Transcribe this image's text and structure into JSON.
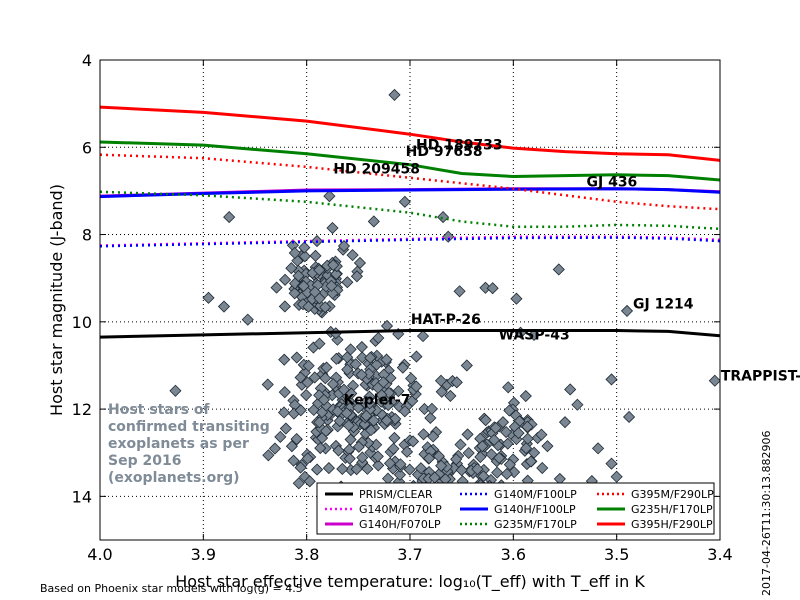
{
  "chart_data": {
    "type": "scatter",
    "xlabel": "Host star effective temperature: log₁₀(T_eff) with T_eff in K",
    "ylabel": "Host star magnitude (J-band)",
    "xlim": [
      4.0,
      3.4
    ],
    "ylim": [
      15,
      4
    ],
    "x_ticks": [
      "4.0",
      "3.9",
      "3.8",
      "3.7",
      "3.6",
      "3.5",
      "3.4"
    ],
    "y_ticks": [
      "4",
      "6",
      "8",
      "10",
      "12",
      "14"
    ],
    "grid": true,
    "legend_position": "bottom-right",
    "annotation": "Host stars of\nconfirmed transiting\nexoplanets as per\nSep 2016\n(exoplanets.org)",
    "footnote": "Based on Phoenix star models with log(g) = 4.5",
    "timestamp": "2017-04-26T11:30:13.882906",
    "named_stars": [
      {
        "name": "HD 189733",
        "x": 3.7,
        "y": 6.05
      },
      {
        "name": "HD 97658",
        "x": 3.71,
        "y": 6.2
      },
      {
        "name": "HD 209458",
        "x": 3.78,
        "y": 6.6
      },
      {
        "name": "GJ 436",
        "x": 3.535,
        "y": 6.9
      },
      {
        "name": "HAT-P-26",
        "x": 3.705,
        "y": 10.05
      },
      {
        "name": "WASP-43",
        "x": 3.62,
        "y": 10.4
      },
      {
        "name": "GJ 1214",
        "x": 3.49,
        "y": 9.7
      },
      {
        "name": "TRAPPIST-1",
        "x": 3.405,
        "y": 11.35
      },
      {
        "name": "Kepler-7",
        "x": 3.77,
        "y": 11.9
      }
    ],
    "series": [
      {
        "name": "PRISM/CLEAR",
        "color": "#000000",
        "dash": "solid",
        "points": [
          [
            4.0,
            10.35
          ],
          [
            3.9,
            10.3
          ],
          [
            3.8,
            10.25
          ],
          [
            3.7,
            10.2
          ],
          [
            3.6,
            10.2
          ],
          [
            3.5,
            10.2
          ],
          [
            3.45,
            10.22
          ],
          [
            3.4,
            10.32
          ]
        ]
      },
      {
        "name": "G140M/F070LP",
        "color": "#ff00ff",
        "dash": "dotted",
        "points": [
          [
            4.0,
            8.25
          ],
          [
            3.9,
            8.2
          ],
          [
            3.8,
            8.15
          ],
          [
            3.7,
            8.1
          ],
          [
            3.6,
            8.05
          ],
          [
            3.5,
            8.05
          ],
          [
            3.45,
            8.07
          ],
          [
            3.4,
            8.12
          ]
        ]
      },
      {
        "name": "G140H/F070LP",
        "color": "#cc00cc",
        "dash": "solid",
        "points": [
          [
            4.0,
            7.12
          ],
          [
            3.9,
            7.05
          ],
          [
            3.8,
            6.98
          ],
          [
            3.7,
            6.97
          ],
          [
            3.6,
            6.95
          ],
          [
            3.5,
            6.95
          ],
          [
            3.45,
            6.97
          ],
          [
            3.4,
            7.02
          ]
        ]
      },
      {
        "name": "G140M/F100LP",
        "color": "#0000ff",
        "dash": "dotted",
        "points": [
          [
            4.0,
            8.27
          ],
          [
            3.9,
            8.22
          ],
          [
            3.8,
            8.17
          ],
          [
            3.7,
            8.12
          ],
          [
            3.6,
            8.08
          ],
          [
            3.5,
            8.07
          ],
          [
            3.45,
            8.09
          ],
          [
            3.4,
            8.15
          ]
        ]
      },
      {
        "name": "G140H/F100LP",
        "color": "#0000ff",
        "dash": "solid",
        "points": [
          [
            4.0,
            7.13
          ],
          [
            3.9,
            7.06
          ],
          [
            3.8,
            7.0
          ],
          [
            3.7,
            6.98
          ],
          [
            3.6,
            6.96
          ],
          [
            3.5,
            6.95
          ],
          [
            3.45,
            6.97
          ],
          [
            3.4,
            7.03
          ]
        ]
      },
      {
        "name": "G235M/F170LP",
        "color": "#008000",
        "dash": "dotted",
        "points": [
          [
            4.0,
            7.02
          ],
          [
            3.9,
            7.1
          ],
          [
            3.8,
            7.25
          ],
          [
            3.7,
            7.5
          ],
          [
            3.65,
            7.7
          ],
          [
            3.6,
            7.82
          ],
          [
            3.55,
            7.82
          ],
          [
            3.5,
            7.78
          ],
          [
            3.45,
            7.8
          ],
          [
            3.4,
            7.87
          ]
        ]
      },
      {
        "name": "G395M/F290LP",
        "color": "#ff0000",
        "dash": "dotted",
        "points": [
          [
            4.0,
            6.17
          ],
          [
            3.9,
            6.25
          ],
          [
            3.8,
            6.45
          ],
          [
            3.7,
            6.7
          ],
          [
            3.6,
            6.95
          ],
          [
            3.55,
            7.1
          ],
          [
            3.5,
            7.25
          ],
          [
            3.45,
            7.35
          ],
          [
            3.4,
            7.42
          ]
        ]
      },
      {
        "name": "G235H/F170LP",
        "color": "#008000",
        "dash": "solid",
        "points": [
          [
            4.0,
            5.88
          ],
          [
            3.9,
            5.95
          ],
          [
            3.8,
            6.15
          ],
          [
            3.7,
            6.4
          ],
          [
            3.65,
            6.6
          ],
          [
            3.6,
            6.67
          ],
          [
            3.55,
            6.65
          ],
          [
            3.5,
            6.63
          ],
          [
            3.45,
            6.65
          ],
          [
            3.4,
            6.75
          ]
        ]
      },
      {
        "name": "G395H/F290LP",
        "color": "#ff0000",
        "dash": "solid",
        "points": [
          [
            4.0,
            5.08
          ],
          [
            3.9,
            5.2
          ],
          [
            3.8,
            5.4
          ],
          [
            3.7,
            5.7
          ],
          [
            3.65,
            5.88
          ],
          [
            3.6,
            6.02
          ],
          [
            3.55,
            6.1
          ],
          [
            3.5,
            6.15
          ],
          [
            3.45,
            6.17
          ],
          [
            3.4,
            6.3
          ]
        ]
      }
    ],
    "star_points": [
      [
        3.715,
        4.8
      ],
      [
        3.927,
        11.58
      ],
      [
        3.875,
        7.6
      ],
      [
        3.735,
        7.7
      ],
      [
        3.705,
        7.25
      ],
      [
        3.668,
        7.6
      ],
      [
        3.663,
        8.05
      ],
      [
        3.778,
        7.12
      ],
      [
        3.775,
        7.85
      ],
      [
        3.79,
        8.15
      ],
      [
        3.895,
        9.45
      ],
      [
        3.88,
        9.65
      ],
      [
        3.857,
        9.95
      ],
      [
        3.652,
        9.3
      ],
      [
        3.627,
        9.22
      ],
      [
        3.597,
        9.47
      ],
      [
        3.556,
        8.8
      ],
      [
        3.58,
        10.3
      ],
      [
        3.593,
        10.25
      ],
      [
        3.49,
        9.75
      ],
      [
        3.505,
        11.32
      ],
      [
        3.488,
        12.18
      ],
      [
        3.405,
        11.35
      ],
      [
        3.518,
        12.9
      ],
      [
        3.505,
        13.25
      ],
      [
        3.524,
        13.65
      ],
      [
        3.5,
        13.55
      ],
      [
        3.62,
        9.23
      ],
      [
        3.545,
        11.55
      ],
      [
        3.538,
        11.9
      ],
      [
        3.55,
        12.3
      ],
      [
        3.567,
        12.85
      ],
      [
        3.583,
        13.2
      ],
      [
        3.705,
        12.05
      ],
      [
        3.67,
        11.35
      ],
      [
        3.645,
        11.0
      ],
      [
        3.605,
        11.5
      ],
      [
        3.61,
        12.3
      ],
      [
        3.595,
        12.55
      ],
      [
        3.63,
        12.85
      ],
      [
        3.65,
        13.4
      ],
      [
        3.572,
        13.35
      ],
      [
        3.555,
        13.6
      ]
    ],
    "cluster_regions": [
      {
        "x_range": [
          3.86,
          3.64
        ],
        "y_range": [
          10.0,
          14.0
        ],
        "count": 260
      },
      {
        "x_range": [
          3.84,
          3.74
        ],
        "y_range": [
          8.2,
          10.0
        ],
        "count": 90
      },
      {
        "x_range": [
          3.72,
          3.57
        ],
        "y_range": [
          12.2,
          14.8
        ],
        "count": 90
      },
      {
        "x_range": [
          3.65,
          3.55
        ],
        "y_range": [
          11.5,
          13.5
        ],
        "count": 40
      }
    ]
  }
}
